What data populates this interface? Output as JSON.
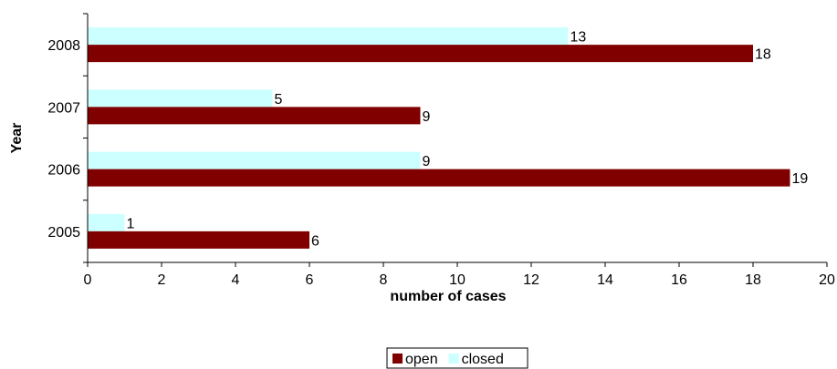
{
  "chart_data": {
    "type": "bar",
    "orientation": "horizontal",
    "categories": [
      "2005",
      "2006",
      "2007",
      "2008"
    ],
    "series": [
      {
        "name": "open",
        "values": [
          6,
          19,
          9,
          18
        ],
        "color": "#800000"
      },
      {
        "name": "closed",
        "values": [
          1,
          9,
          5,
          13
        ],
        "color": "#ccffff"
      }
    ],
    "xlabel": "number of cases",
    "ylabel": "Year",
    "xlim": [
      0,
      20
    ],
    "xticks": [
      0,
      2,
      4,
      6,
      8,
      10,
      12,
      14,
      16,
      18,
      20
    ],
    "grid": false,
    "legend_position": "bottom"
  }
}
